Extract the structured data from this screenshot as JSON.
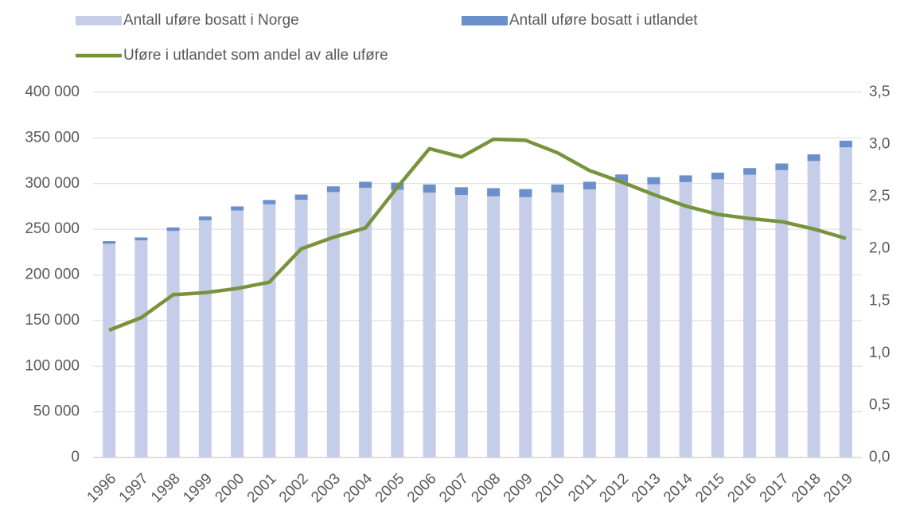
{
  "chart_data": {
    "type": "bar",
    "stacked": true,
    "categories": [
      "1996",
      "1997",
      "1998",
      "1999",
      "2000",
      "2001",
      "2002",
      "2003",
      "2004",
      "2005",
      "2006",
      "2007",
      "2008",
      "2009",
      "2010",
      "2011",
      "2012",
      "2013",
      "2014",
      "2015",
      "2016",
      "2017",
      "2018",
      "2019"
    ],
    "series": [
      {
        "name": "Antall uføre bosatt i Norge",
        "color": "#c5cde9",
        "values": [
          234100,
          237800,
          248100,
          259800,
          270500,
          277300,
          282200,
          290700,
          295400,
          293200,
          290100,
          287500,
          286000,
          285100,
          290300,
          293700,
          301800,
          299300,
          301600,
          304700,
          309700,
          314700,
          324700,
          339700
        ]
      },
      {
        "name": "Antall uføre bosatt i utlandet",
        "color": "#6b8fca",
        "values": [
          2900,
          3200,
          3900,
          4200,
          4500,
          4700,
          5800,
          6300,
          6600,
          7800,
          8900,
          8500,
          9000,
          8900,
          8700,
          8300,
          8200,
          7700,
          7400,
          7300,
          7300,
          7300,
          7300,
          7300
        ]
      },
      {
        "name": "Uføre i utlandet som andel av alle uføre",
        "color": "#77933c",
        "type": "line",
        "axis": "y2",
        "values": [
          1.22,
          1.34,
          1.56,
          1.58,
          1.62,
          1.68,
          2.0,
          2.11,
          2.2,
          2.59,
          2.96,
          2.88,
          3.05,
          3.04,
          2.92,
          2.75,
          2.64,
          2.52,
          2.41,
          2.33,
          2.29,
          2.26,
          2.19,
          2.1
        ]
      }
    ],
    "ylim": [
      0,
      400000
    ],
    "yticks": [
      0,
      {
        "value": 50000,
        "label": "50 000"
      },
      {
        "value": 100000,
        "label": "100 000"
      },
      {
        "value": 150000,
        "label": "150 000"
      },
      {
        "value": 200000,
        "label": "200 000"
      },
      {
        "value": 250000,
        "label": "250 000"
      },
      {
        "value": 300000,
        "label": "300 000"
      },
      {
        "value": 350000,
        "label": "350 000"
      },
      {
        "value": 400000,
        "label": "400 000"
      }
    ],
    "y2lim": [
      0,
      3.5
    ],
    "y2ticks": [
      {
        "value": 0,
        "label": "0,0"
      },
      {
        "value": 0.5,
        "label": "0,5"
      },
      {
        "value": 1,
        "label": "1,0"
      },
      {
        "value": 1.5,
        "label": "1,5"
      },
      {
        "value": 2,
        "label": "2,0"
      },
      {
        "value": 2.5,
        "label": "2,5"
      },
      {
        "value": 3,
        "label": "3,0"
      },
      {
        "value": 3.5,
        "label": "3,5"
      }
    ],
    "grid": true
  }
}
